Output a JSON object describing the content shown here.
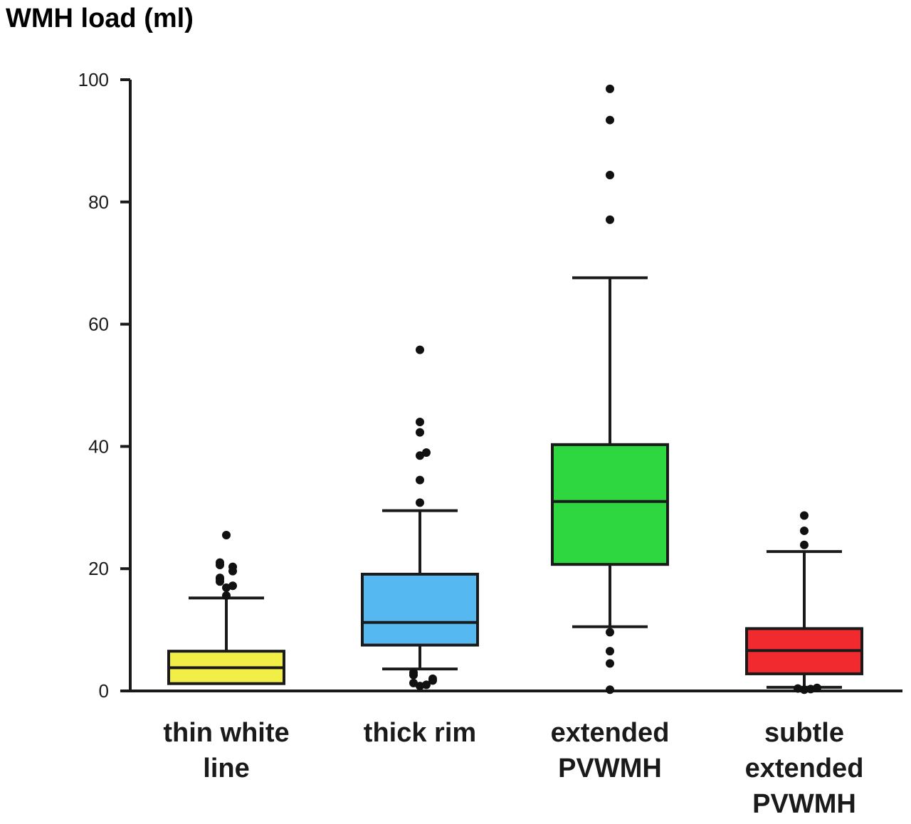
{
  "chart_data": {
    "type": "box",
    "ylabel": "WMH load (ml)",
    "ylim": [
      0,
      100
    ],
    "yticks": [
      0,
      20,
      40,
      60,
      80,
      100
    ],
    "grid": false,
    "categories": [
      {
        "label_lines": [
          "thin white",
          "line"
        ],
        "color": "#f2ee48",
        "whisker_low": 1.2,
        "q1": 1.2,
        "median": 3.8,
        "q3": 6.5,
        "whisker_high": 15.2,
        "outliers": [
          15.6,
          16.9,
          17.2,
          17.9,
          18.3,
          18.5,
          19.6,
          20.3,
          20.6,
          21.0,
          25.5
        ]
      },
      {
        "label_lines": [
          "thick rim"
        ],
        "color": "#56b8f0",
        "whisker_low": 3.6,
        "q1": 7.5,
        "median": 11.2,
        "q3": 19.1,
        "whisker_high": 29.5,
        "outliers": [
          0.8,
          1.0,
          1.3,
          1.7,
          2.0,
          2.6,
          3.0,
          30.8,
          34.5,
          38.5,
          39.0,
          42.3,
          44.0,
          55.8
        ]
      },
      {
        "label_lines": [
          "extended",
          "PVWMH"
        ],
        "color": "#2ed640",
        "whisker_low": 10.5,
        "q1": 20.7,
        "median": 31.0,
        "q3": 40.3,
        "whisker_high": 67.6,
        "outliers": [
          0.2,
          4.5,
          6.5,
          9.6,
          77.1,
          84.4,
          93.4,
          98.5
        ]
      },
      {
        "label_lines": [
          "subtle",
          "extended",
          "PVWMH"
        ],
        "color": "#f02a2e",
        "whisker_low": 0.6,
        "q1": 2.8,
        "median": 6.6,
        "q3": 10.2,
        "whisker_high": 22.8,
        "outliers": [
          0.2,
          0.3,
          0.4,
          0.5,
          23.9,
          26.2,
          28.7
        ]
      }
    ]
  }
}
